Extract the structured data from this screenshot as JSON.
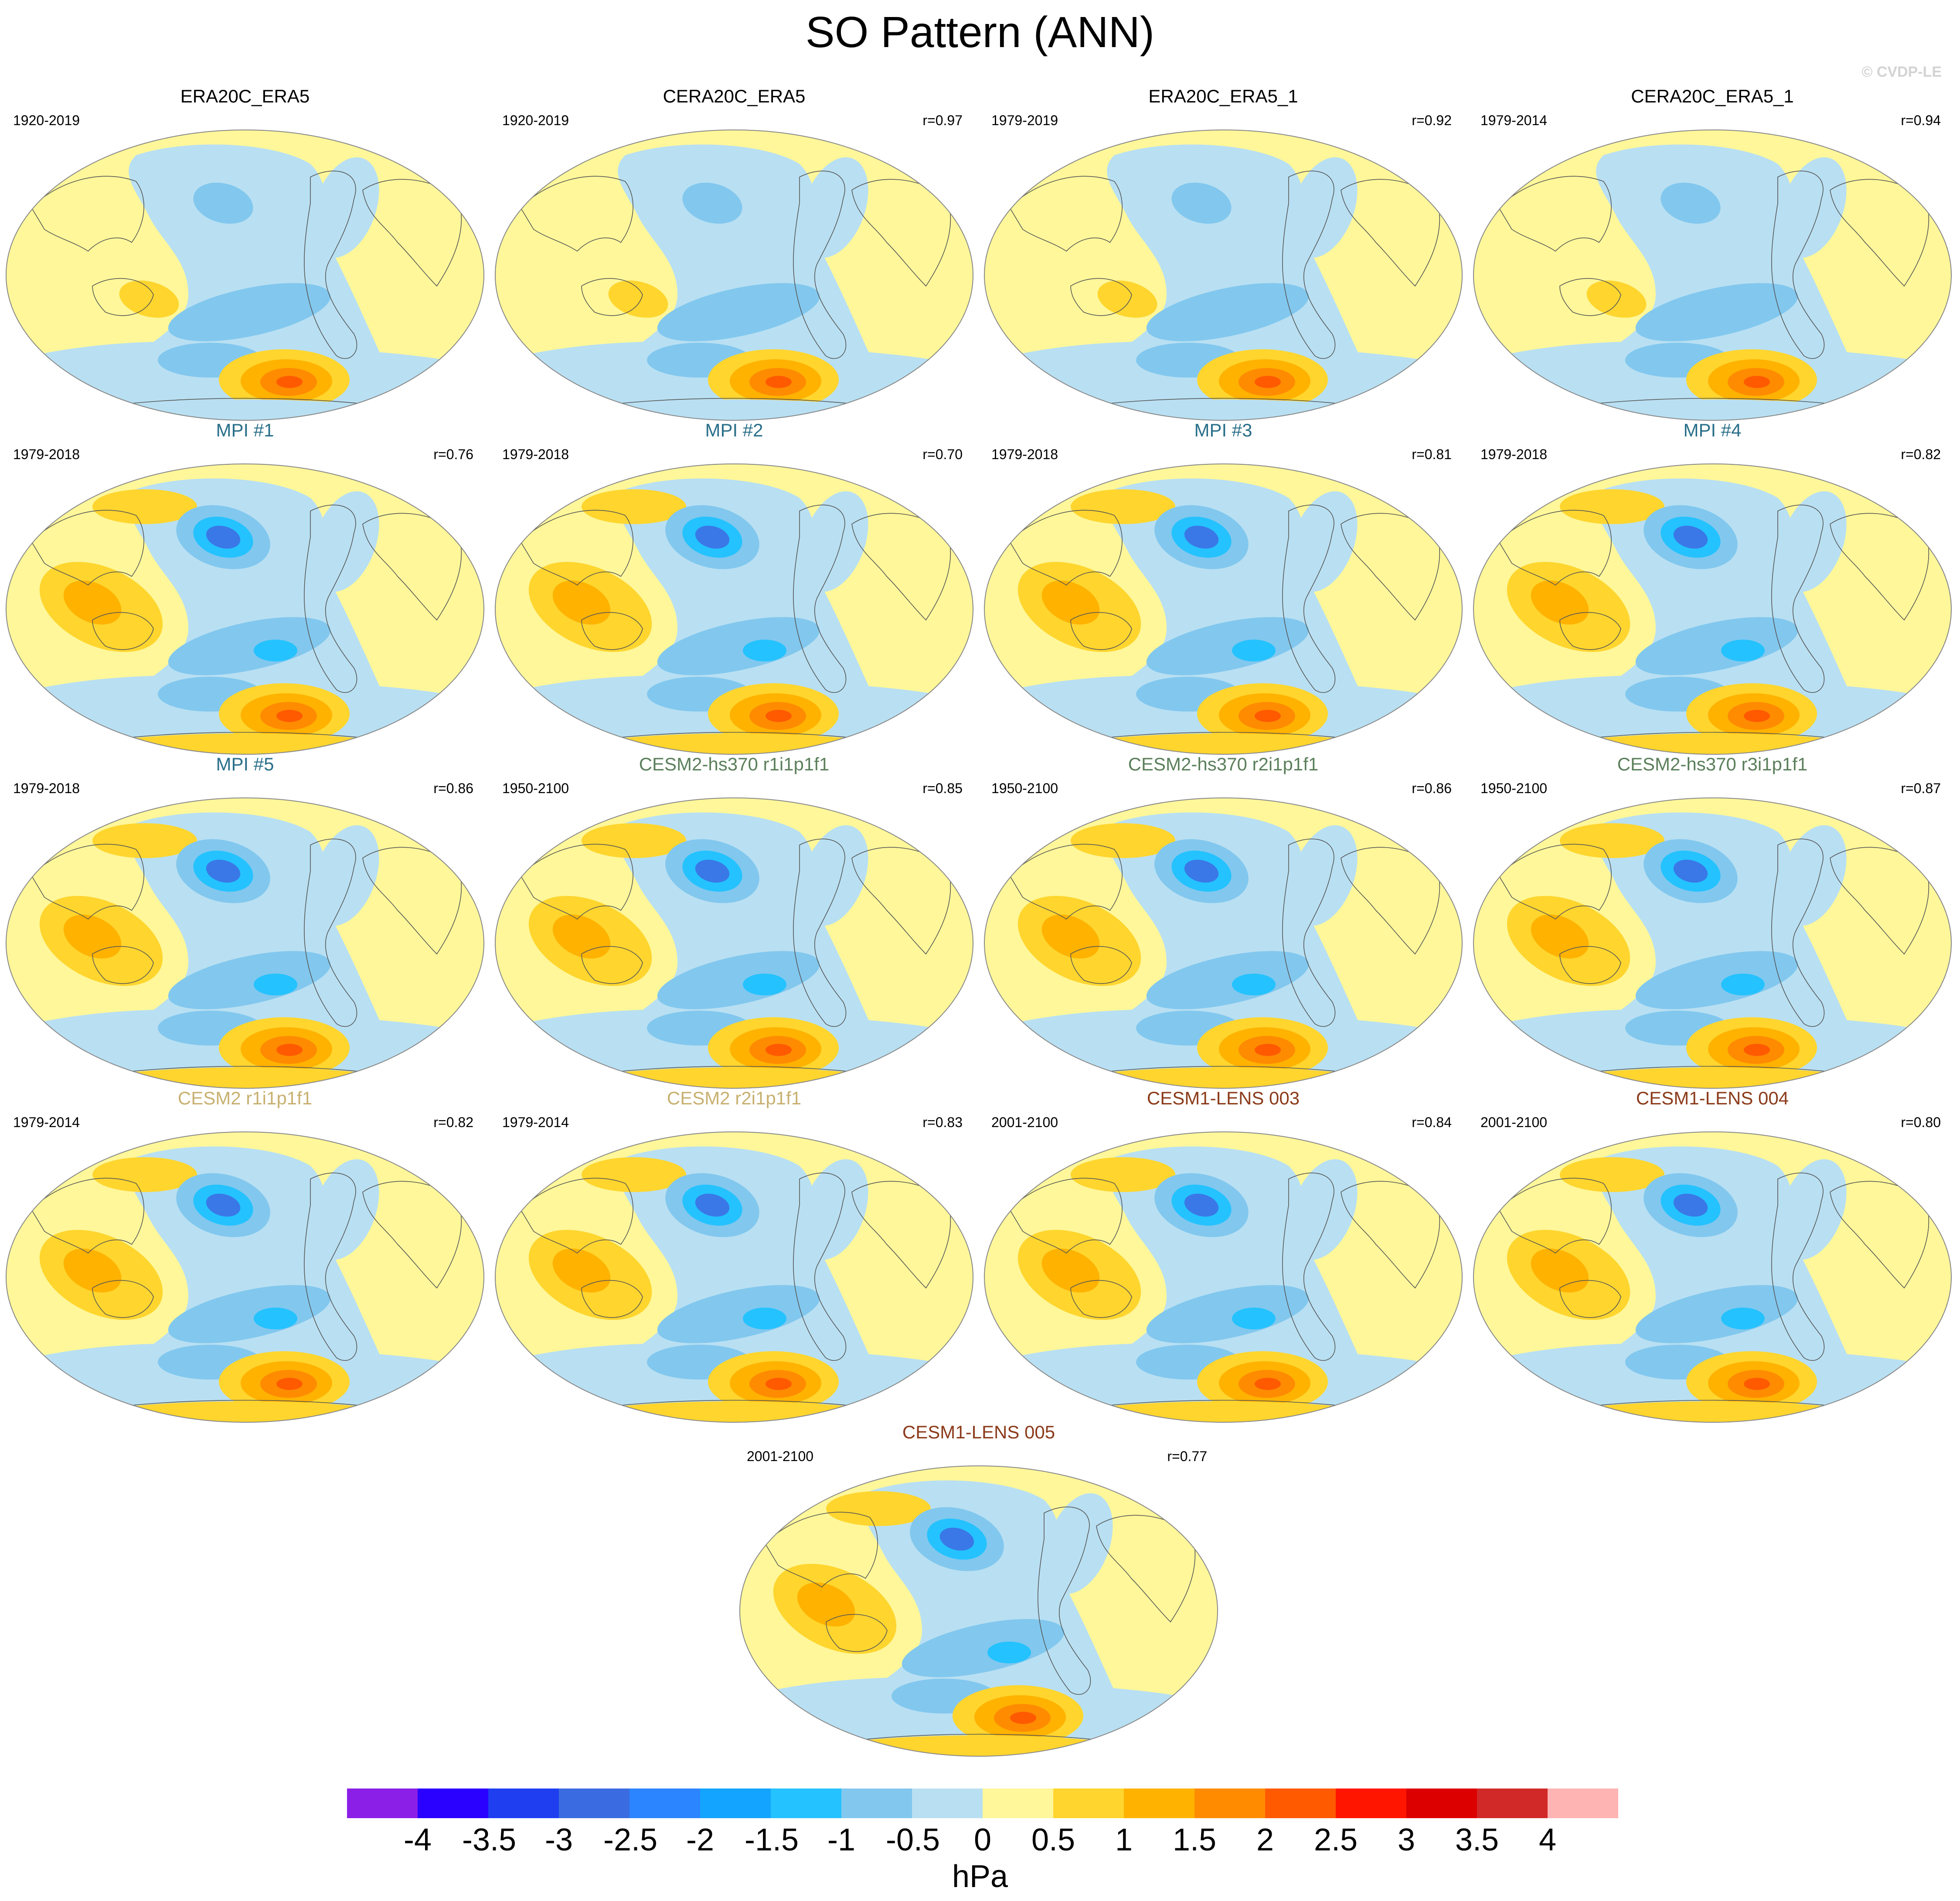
{
  "figure": {
    "title": "SO Pattern (ANN)",
    "credit": "© CVDP-LE"
  },
  "panels": [
    {
      "title": "ERA20C_ERA5",
      "title_color": "#000000",
      "period": "1920-2019",
      "corr": ""
    },
    {
      "title": "CERA20C_ERA5",
      "title_color": "#000000",
      "period": "1920-2019",
      "corr": "r=0.97"
    },
    {
      "title": "ERA20C_ERA5_1",
      "title_color": "#000000",
      "period": "1979-2019",
      "corr": "r=0.92"
    },
    {
      "title": "CERA20C_ERA5_1",
      "title_color": "#000000",
      "period": "1979-2014",
      "corr": "r=0.94"
    },
    {
      "title": "MPI #1",
      "title_color": "#2a6f8a",
      "period": "1979-2018",
      "corr": "r=0.76"
    },
    {
      "title": "MPI #2",
      "title_color": "#2a6f8a",
      "period": "1979-2018",
      "corr": "r=0.70"
    },
    {
      "title": "MPI #3",
      "title_color": "#2a6f8a",
      "period": "1979-2018",
      "corr": "r=0.81"
    },
    {
      "title": "MPI #4",
      "title_color": "#2a6f8a",
      "period": "1979-2018",
      "corr": "r=0.82"
    },
    {
      "title": "MPI #5",
      "title_color": "#2a6f8a",
      "period": "1979-2018",
      "corr": "r=0.86"
    },
    {
      "title": "CESM2-hs370 r1i1p1f1",
      "title_color": "#5a7f5a",
      "period": "1950-2100",
      "corr": "r=0.85"
    },
    {
      "title": "CESM2-hs370 r2i1p1f1",
      "title_color": "#5a7f5a",
      "period": "1950-2100",
      "corr": "r=0.86"
    },
    {
      "title": "CESM2-hs370 r3i1p1f1",
      "title_color": "#5a7f5a",
      "period": "1950-2100",
      "corr": "r=0.87"
    },
    {
      "title": "CESM2 r1i1p1f1",
      "title_color": "#c8b070",
      "period": "1979-2014",
      "corr": "r=0.82"
    },
    {
      "title": "CESM2 r2i1p1f1",
      "title_color": "#c8b070",
      "period": "1979-2014",
      "corr": "r=0.83"
    },
    {
      "title": "CESM1-LENS 003",
      "title_color": "#8b3a1a",
      "period": "2001-2100",
      "corr": "r=0.84"
    },
    {
      "title": "CESM1-LENS 004",
      "title_color": "#8b3a1a",
      "period": "2001-2100",
      "corr": "r=0.80"
    },
    {
      "title": "CESM1-LENS 005",
      "title_color": "#8b3a1a",
      "period": "2001-2100",
      "corr": "r=0.77"
    }
  ],
  "colorbar": {
    "units": "hPa",
    "labels": [
      "-4",
      "-3.5",
      "-3",
      "-2.5",
      "-2",
      "-1.5",
      "-1",
      "-0.5",
      "0",
      "0.5",
      "1",
      "1.5",
      "2",
      "2.5",
      "3",
      "3.5",
      "4"
    ],
    "colors": [
      "#8b1fe8",
      "#2a00ff",
      "#1f3ef0",
      "#3a6be0",
      "#2a85ff",
      "#12a4ff",
      "#24c2ff",
      "#82c8ee",
      "#b8e0f2",
      "#fff79a",
      "#ffd52e",
      "#ffb300",
      "#ff8c00",
      "#ff5a00",
      "#ff1500",
      "#dd0000",
      "#d12828",
      "#ffb4b4"
    ]
  }
}
